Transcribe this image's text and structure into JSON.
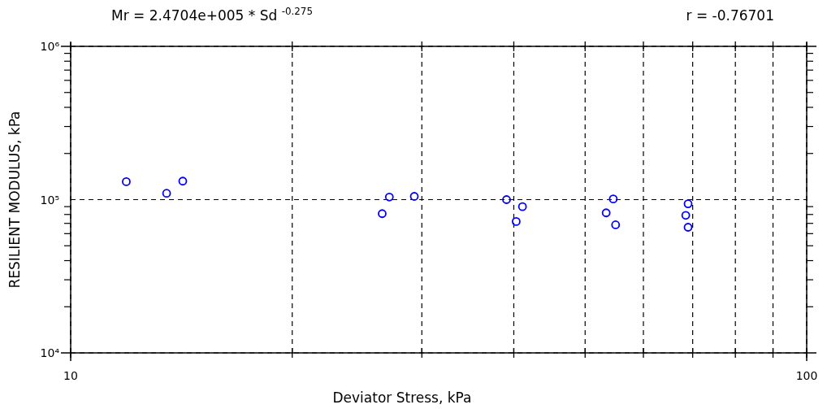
{
  "chart_data": {
    "type": "scatter",
    "title": "Mr = 2.4704e+005 * Sd $^{-0.275}$",
    "annotations": [
      "r = -0.76701"
    ],
    "xlabel": "Deviator Stress, kPa",
    "ylabel": "RESILIENT MODULUS, kPa",
    "log": "xy",
    "grid": true,
    "marker": "circle",
    "xlim": [
      10,
      100
    ],
    "ylim": [
      10000,
      1000000
    ],
    "xticks": [
      10,
      {
        "value": 20,
        "label": null
      },
      {
        "value": 30,
        "label": null
      },
      {
        "value": 40,
        "label": null
      },
      {
        "value": 50,
        "label": null
      },
      {
        "value": 60,
        "label": null
      },
      {
        "value": 70,
        "label": null
      },
      {
        "value": 80,
        "label": null
      },
      {
        "value": 90,
        "label": null
      },
      100
    ],
    "yticks": [
      {
        "value": 10000,
        "label": "10⁴"
      },
      {
        "value": 100000,
        "label": "10⁵"
      },
      {
        "value": 1000000,
        "label": "10⁶"
      }
    ],
    "series": [
      {
        "color": "#0000ff",
        "x": [
          11.9,
          13.5,
          14.2,
          26.5,
          27.1,
          29.3,
          39.1,
          41.1,
          40.3,
          53.4,
          54.6,
          55.0,
          68.5,
          69.0,
          69.0
        ],
        "values": [
          131000,
          110000,
          132000,
          81000,
          104000,
          105000,
          100000,
          90000,
          72000,
          82000,
          101000,
          68500,
          79000,
          94000,
          66000
        ]
      }
    ]
  }
}
